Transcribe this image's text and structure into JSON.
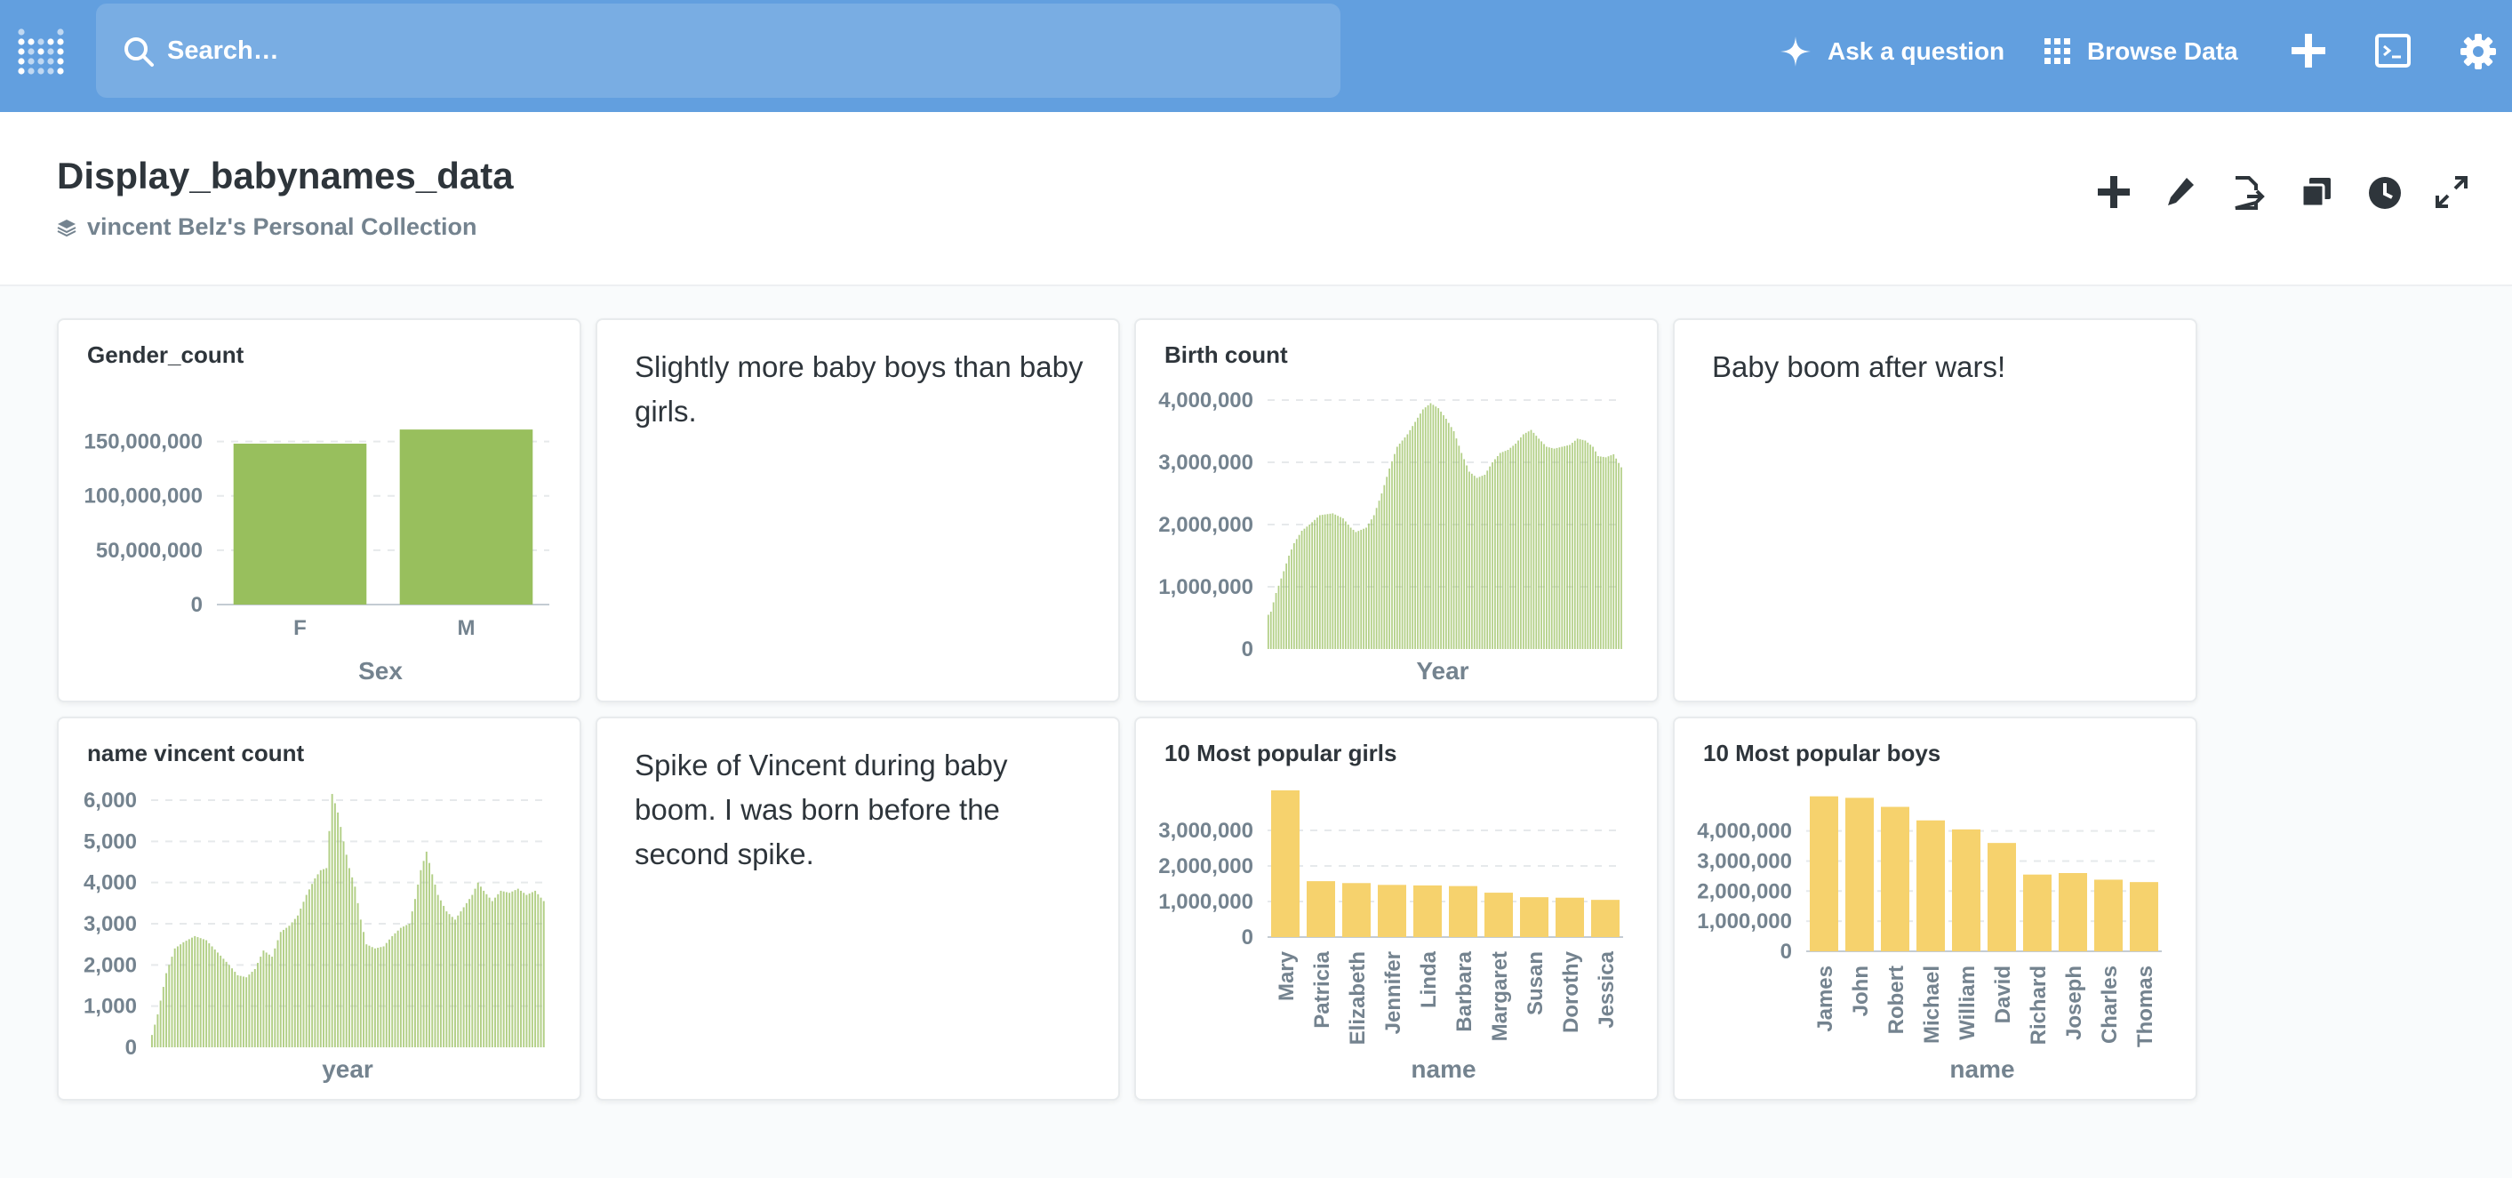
{
  "nav": {
    "search_placeholder": "Search…",
    "ask_label": "Ask a question",
    "browse_label": "Browse Data",
    "bg_color": "#629fdf"
  },
  "header": {
    "title": "Display_babynames_data",
    "collection": "vincent Belz's Personal Collection"
  },
  "cards": {
    "gender_count": {
      "title": "Gender_count",
      "chart_data": {
        "type": "bar",
        "categories": [
          "F",
          "M"
        ],
        "values": [
          148000000,
          161000000
        ],
        "xlabel": "Sex",
        "ylabel": "",
        "ylim": [
          0,
          175000000
        ],
        "yticks": [
          "0",
          "50,000,000",
          "100,000,000",
          "150,000,000"
        ],
        "color": "#98bf5d"
      }
    },
    "text1": {
      "text": "Slightly more baby boys than baby girls."
    },
    "birth_count": {
      "title": "Birth count",
      "chart_data": {
        "type": "bar",
        "x_range": [
          1880,
          2017
        ],
        "keypoints": [
          [
            1880,
            550000
          ],
          [
            1881,
            600000
          ],
          [
            1883,
            900000
          ],
          [
            1886,
            1250000
          ],
          [
            1888,
            1500000
          ],
          [
            1890,
            1700000
          ],
          [
            1893,
            1900000
          ],
          [
            1896,
            2000000
          ],
          [
            1900,
            2150000
          ],
          [
            1905,
            2180000
          ],
          [
            1909,
            2100000
          ],
          [
            1912,
            1950000
          ],
          [
            1914,
            1880000
          ],
          [
            1918,
            1950000
          ],
          [
            1921,
            2150000
          ],
          [
            1924,
            2500000
          ],
          [
            1927,
            2900000
          ],
          [
            1930,
            3250000
          ],
          [
            1934,
            3450000
          ],
          [
            1937,
            3650000
          ],
          [
            1940,
            3850000
          ],
          [
            1943,
            3950000
          ],
          [
            1946,
            3870000
          ],
          [
            1949,
            3700000
          ],
          [
            1952,
            3500000
          ],
          [
            1955,
            3150000
          ],
          [
            1958,
            2850000
          ],
          [
            1961,
            2750000
          ],
          [
            1964,
            2800000
          ],
          [
            1967,
            3000000
          ],
          [
            1970,
            3150000
          ],
          [
            1973,
            3200000
          ],
          [
            1976,
            3300000
          ],
          [
            1979,
            3450000
          ],
          [
            1982,
            3520000
          ],
          [
            1985,
            3380000
          ],
          [
            1988,
            3250000
          ],
          [
            1991,
            3220000
          ],
          [
            1994,
            3250000
          ],
          [
            1997,
            3280000
          ],
          [
            2000,
            3380000
          ],
          [
            2003,
            3350000
          ],
          [
            2006,
            3250000
          ],
          [
            2008,
            3100000
          ],
          [
            2011,
            3080000
          ],
          [
            2014,
            3130000
          ],
          [
            2017,
            2920000
          ]
        ],
        "xlabel": "Year",
        "ylabel": "",
        "ylim": [
          0,
          4000000
        ],
        "yticks": [
          "0",
          "1,000,000",
          "2,000,000",
          "3,000,000",
          "4,000,000"
        ],
        "color": "#98bf5d"
      }
    },
    "text2": {
      "text": "Baby boom after wars!"
    },
    "vincent_count": {
      "title": "name vincent count",
      "chart_data": {
        "type": "bar",
        "x_range": [
          1880,
          2017
        ],
        "keypoints": [
          [
            1880,
            300
          ],
          [
            1882,
            800
          ],
          [
            1885,
            1800
          ],
          [
            1888,
            2400
          ],
          [
            1891,
            2550
          ],
          [
            1895,
            2700
          ],
          [
            1899,
            2600
          ],
          [
            1903,
            2300
          ],
          [
            1907,
            2000
          ],
          [
            1910,
            1750
          ],
          [
            1913,
            1700
          ],
          [
            1916,
            1900
          ],
          [
            1919,
            2350
          ],
          [
            1922,
            2200
          ],
          [
            1925,
            2800
          ],
          [
            1928,
            2950
          ],
          [
            1931,
            3200
          ],
          [
            1934,
            3700
          ],
          [
            1937,
            4100
          ],
          [
            1939,
            4300
          ],
          [
            1941,
            4350
          ],
          [
            1943,
            6150
          ],
          [
            1945,
            5700
          ],
          [
            1947,
            5000
          ],
          [
            1949,
            4350
          ],
          [
            1951,
            3900
          ],
          [
            1953,
            3100
          ],
          [
            1955,
            2500
          ],
          [
            1958,
            2400
          ],
          [
            1961,
            2450
          ],
          [
            1964,
            2700
          ],
          [
            1967,
            2900
          ],
          [
            1970,
            3000
          ],
          [
            1972,
            3600
          ],
          [
            1974,
            4300
          ],
          [
            1976,
            4750
          ],
          [
            1978,
            4200
          ],
          [
            1980,
            3700
          ],
          [
            1983,
            3300
          ],
          [
            1986,
            3100
          ],
          [
            1989,
            3400
          ],
          [
            1992,
            3700
          ],
          [
            1994,
            4000
          ],
          [
            1996,
            3800
          ],
          [
            1999,
            3550
          ],
          [
            2002,
            3800
          ],
          [
            2005,
            3750
          ],
          [
            2008,
            3850
          ],
          [
            2011,
            3700
          ],
          [
            2014,
            3800
          ],
          [
            2017,
            3550
          ]
        ],
        "xlabel": "year",
        "ylabel": "",
        "ylim": [
          0,
          6000
        ],
        "yticks": [
          "0",
          "1,000",
          "2,000",
          "3,000",
          "4,000",
          "5,000",
          "6,000"
        ],
        "color": "#98bf5d"
      }
    },
    "text3": {
      "text": "Spike of Vincent during baby boom. I was born before the second spike."
    },
    "girls": {
      "title": "10 Most popular girls",
      "chart_data": {
        "type": "bar",
        "categories": [
          "Mary",
          "Patricia",
          "Elizabeth",
          "Jennifer",
          "Linda",
          "Barbara",
          "Margaret",
          "Susan",
          "Dorothy",
          "Jessica"
        ],
        "values": [
          4125000,
          1572000,
          1518000,
          1467000,
          1452000,
          1434000,
          1248000,
          1121000,
          1107000,
          1046000
        ],
        "xlabel": "name",
        "ylabel": "",
        "ylim": [
          0,
          4200000
        ],
        "yticks": [
          "0",
          "1,000,000",
          "2,000,000",
          "3,000,000"
        ],
        "color": "#f6d26d"
      }
    },
    "boys": {
      "title": "10 Most popular boys",
      "chart_data": {
        "type": "bar",
        "categories": [
          "James",
          "John",
          "Robert",
          "Michael",
          "William",
          "David",
          "Richard",
          "Joseph",
          "Charles",
          "Thomas"
        ],
        "values": [
          5150000,
          5100000,
          4800000,
          4350000,
          4050000,
          3600000,
          2550000,
          2600000,
          2380000,
          2300000
        ],
        "xlabel": "name",
        "ylabel": "",
        "ylim": [
          0,
          5200000
        ],
        "yticks": [
          "0",
          "1,000,000",
          "2,000,000",
          "3,000,000",
          "4,000,000"
        ],
        "color": "#f6d26d"
      }
    }
  }
}
